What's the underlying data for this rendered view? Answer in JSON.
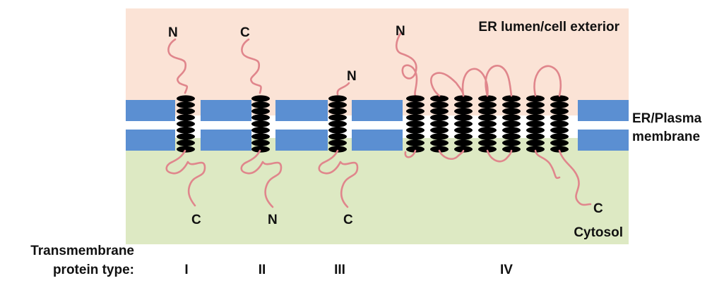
{
  "colors": {
    "lumen_bg": "#fbe3d6",
    "cytosol_bg": "#dde9c3",
    "membrane": "#5b8fd2",
    "protein": "#e0868c"
  },
  "regions": {
    "lumen_label": "ER lumen/cell exterior",
    "cytosol_label": "Cytosol",
    "membrane_label_line1": "ER/Plasma",
    "membrane_label_line2": "membrane"
  },
  "footer": {
    "caption_line1": "Transmembrane",
    "caption_line2": "protein type:"
  },
  "proteins": [
    {
      "type": "I",
      "top_terminus": "N",
      "bottom_terminus": "C",
      "helix_count": 1
    },
    {
      "type": "II",
      "top_terminus": "C",
      "bottom_terminus": "N",
      "helix_count": 1
    },
    {
      "type": "III",
      "top_terminus": "N",
      "bottom_terminus": "C",
      "helix_count": 1
    },
    {
      "type": "IV",
      "top_terminus": "N",
      "bottom_terminus": "C",
      "helix_count": 7
    }
  ]
}
